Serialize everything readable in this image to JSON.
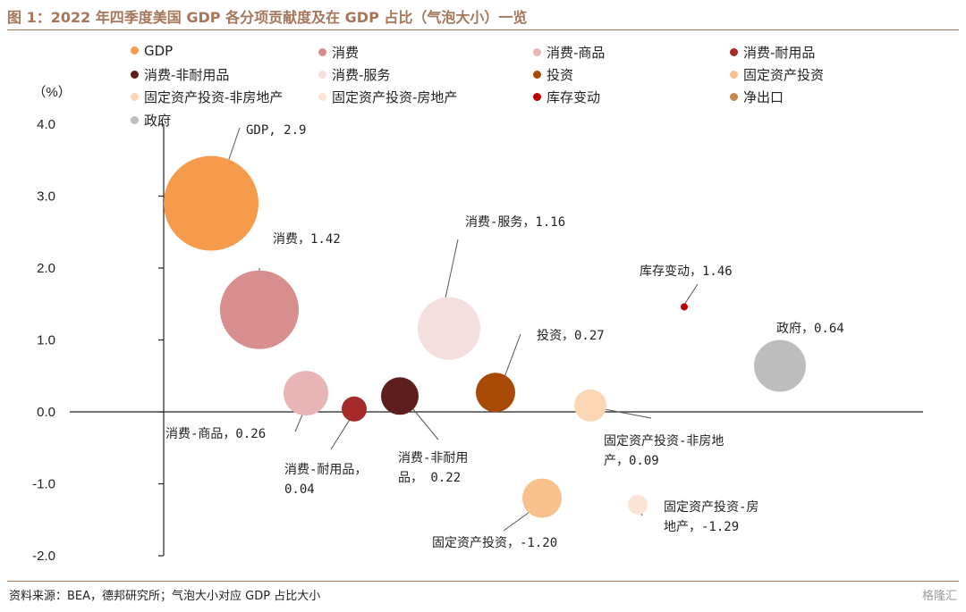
{
  "title": "图 1：2022 年四季度美国 GDP 各分项贡献度及在 GDP 占比（气泡大小）一览",
  "source": "资料来源：BEA，德邦研究所；气泡大小对应 GDP 占比大小",
  "watermark": "格隆汇",
  "chart_data": {
    "type": "scatter",
    "subtype": "bubble",
    "ylabel": "（%）",
    "ylim": [
      -2.0,
      4.0
    ],
    "yticks": [
      "4.0",
      "3.0",
      "2.0",
      "1.0",
      "0.0",
      "-1.0",
      "-2.0"
    ],
    "ytick_values": [
      4,
      3,
      2,
      1,
      0,
      -1,
      -2
    ],
    "grid": false,
    "legend_position": "top",
    "legend": [
      {
        "name": "GDP",
        "color": "#f59b4c"
      },
      {
        "name": "消费",
        "color": "#d98e8e"
      },
      {
        "name": "消费-商品",
        "color": "#e8b4b4"
      },
      {
        "name": "消费-耐用品",
        "color": "#a52a2a"
      },
      {
        "name": "消费-非耐用品",
        "color": "#5e1e1e"
      },
      {
        "name": "消费-服务",
        "color": "#f4dede"
      },
      {
        "name": "投资",
        "color": "#a64a05"
      },
      {
        "name": "固定资产投资",
        "color": "#f8c08c"
      },
      {
        "name": "固定资产投资-非房地产",
        "color": "#fbd6b4"
      },
      {
        "name": "固定资产投资-房地产",
        "color": "#fbe4d6"
      },
      {
        "name": "库存变动",
        "color": "#c00000"
      },
      {
        "name": "净出口",
        "color": "#c8874f"
      },
      {
        "name": "政府",
        "color": "#bdbdbd"
      }
    ],
    "points": [
      {
        "name": "GDP",
        "y": 2.9,
        "label_lines": [
          "GDP, 2.9"
        ]
      },
      {
        "name": "消费",
        "y": 1.42,
        "label_lines": [
          "消费，1.42"
        ]
      },
      {
        "name": "消费-商品",
        "y": 0.26,
        "label_lines": [
          "消费-商品，0.26"
        ]
      },
      {
        "name": "消费-耐用品",
        "y": 0.04,
        "label_lines": [
          "消费-耐用品，",
          "0.04"
        ]
      },
      {
        "name": "消费-非耐用品",
        "y": 0.22,
        "label_lines": [
          "消费-非耐用",
          "品， 0.22"
        ]
      },
      {
        "name": "消费-服务",
        "y": 1.16,
        "label_lines": [
          "消费-服务，1.16"
        ]
      },
      {
        "name": "投资",
        "y": 0.27,
        "label_lines": [
          "投资，0.27"
        ]
      },
      {
        "name": "固定资产投资",
        "y": -1.2,
        "label_lines": [
          "固定资产投资，-1.20"
        ]
      },
      {
        "name": "固定资产投资-非房地产",
        "y": 0.09,
        "label_lines": [
          "固定资产投资-非房地",
          "产，0.09"
        ]
      },
      {
        "name": "固定资产投资-房地产",
        "y": -1.29,
        "label_lines": [
          "固定资产投资-房",
          "地产，-1.29"
        ]
      },
      {
        "name": "库存变动",
        "y": 1.46,
        "label_lines": [
          "库存变动，1.46"
        ]
      },
      {
        "name": "政府",
        "y": 0.64,
        "label_lines": [
          "政府，0.64"
        ]
      }
    ]
  }
}
